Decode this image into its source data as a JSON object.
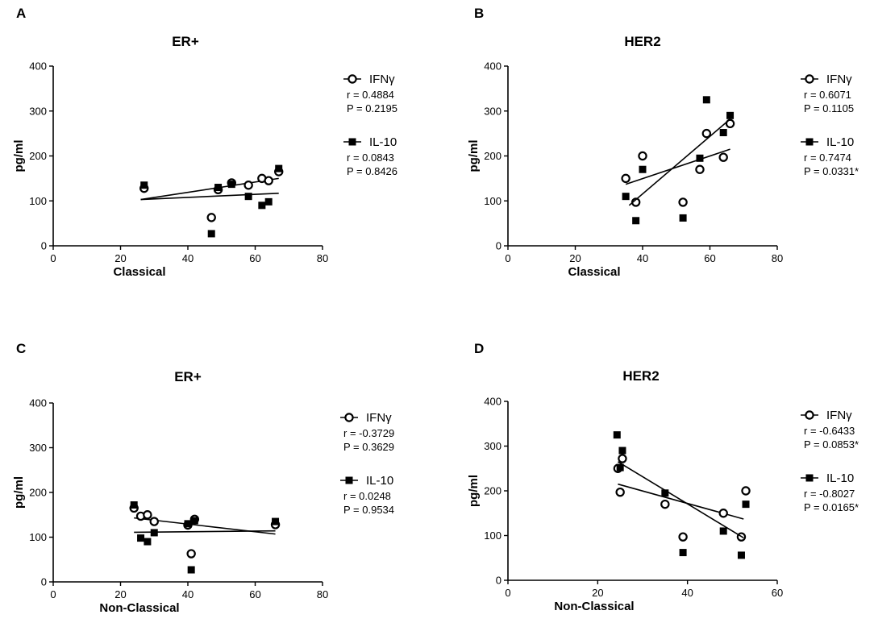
{
  "chart_data": [
    {
      "panel": "A",
      "type": "scatter",
      "title": "ER+",
      "xlabel": "Classical",
      "ylabel": "pg/ml",
      "xlim": [
        0,
        80
      ],
      "ylim": [
        0,
        400
      ],
      "xticks": [
        "0",
        "20",
        "40",
        "60",
        "80"
      ],
      "yticks": [
        "0",
        "100",
        "200",
        "300",
        "400"
      ],
      "series": [
        {
          "name": "IFNγ",
          "marker": "circle",
          "x": [
            27,
            47,
            49,
            53,
            58,
            62,
            64,
            67
          ],
          "y": [
            128,
            63,
            125,
            140,
            135,
            150,
            145,
            165
          ],
          "fit": [
            [
              26,
              103
            ],
            [
              67,
              150
            ]
          ],
          "r": "r  =  0.4884",
          "p": "P  =  0.2195"
        },
        {
          "name": "IL-10",
          "marker": "square",
          "x": [
            27,
            47,
            49,
            53,
            58,
            62,
            64,
            67
          ],
          "y": [
            135,
            27,
            130,
            137,
            110,
            90,
            98,
            172
          ],
          "fit": [
            [
              26,
              103
            ],
            [
              67,
              117
            ]
          ],
          "r": "r  =  0.0843",
          "p": "P  =  0.8426"
        }
      ]
    },
    {
      "panel": "B",
      "type": "scatter",
      "title": "HER2",
      "xlabel": "Classical",
      "ylabel": "pg/ml",
      "xlim": [
        0,
        80
      ],
      "ylim": [
        0,
        400
      ],
      "xticks": [
        "0",
        "20",
        "40",
        "60",
        "80"
      ],
      "yticks": [
        "0",
        "100",
        "200",
        "300",
        "400"
      ],
      "series": [
        {
          "name": "IFNγ",
          "marker": "circle",
          "x": [
            35,
            38,
            40,
            52,
            57,
            59,
            64,
            66
          ],
          "y": [
            150,
            97,
            200,
            97,
            170,
            250,
            197,
            272
          ],
          "fit": [
            [
              35,
              137
            ],
            [
              66,
              215
            ]
          ],
          "r": "r  =  0.6071",
          "p": "P  =  0.1105"
        },
        {
          "name": "IL-10",
          "marker": "square",
          "x": [
            35,
            38,
            40,
            52,
            57,
            59,
            64,
            66
          ],
          "y": [
            110,
            56,
            170,
            62,
            195,
            325,
            252,
            290
          ],
          "fit": [
            [
              36,
              90
            ],
            [
              66,
              282
            ]
          ],
          "r": "r  =  0.7474",
          "p": "P  =  0.0331*"
        }
      ]
    },
    {
      "panel": "C",
      "type": "scatter",
      "title": "ER+",
      "xlabel": "Non-Classical",
      "ylabel": "pg/ml",
      "xlim": [
        0,
        80
      ],
      "ylim": [
        0,
        400
      ],
      "xticks": [
        "0",
        "20",
        "40",
        "60",
        "80"
      ],
      "yticks": [
        "0",
        "100",
        "200",
        "300",
        "400"
      ],
      "series": [
        {
          "name": "IFNγ",
          "marker": "circle",
          "x": [
            24,
            26,
            28,
            30,
            40,
            41,
            42,
            66
          ],
          "y": [
            165,
            147,
            150,
            135,
            127,
            63,
            140,
            128
          ],
          "fit": [
            [
              24,
              143
            ],
            [
              66,
              107
            ]
          ],
          "r": "r  = -0.3729",
          "p": "P  =  0.3629"
        },
        {
          "name": "IL-10",
          "marker": "square",
          "x": [
            24,
            26,
            28,
            30,
            40,
            41,
            42,
            66
          ],
          "y": [
            172,
            98,
            90,
            110,
            130,
            27,
            137,
            135
          ],
          "fit": [
            [
              24,
              111
            ],
            [
              66,
              114
            ]
          ],
          "r": "r  =  0.0248",
          "p": "P  =  0.9534"
        }
      ]
    },
    {
      "panel": "D",
      "type": "scatter",
      "title": "HER2",
      "xlabel": "Non-Classical",
      "ylabel": "pg/ml",
      "xlim": [
        0,
        60
      ],
      "ylim": [
        0,
        400
      ],
      "xticks": [
        "0",
        "20",
        "40",
        "60"
      ],
      "yticks": [
        "0",
        "100",
        "200",
        "300",
        "400"
      ],
      "series": [
        {
          "name": "IFNγ",
          "marker": "circle",
          "x": [
            24.5,
            25,
            25.5,
            35,
            39,
            48,
            52,
            53
          ],
          "y": [
            250,
            197,
            272,
            170,
            97,
            150,
            97,
            200
          ],
          "fit": [
            [
              24.5,
              215
            ],
            [
              52.5,
              137
            ]
          ],
          "r": "r  = -0.6433",
          "p": "P  =  0.0853*"
        },
        {
          "name": "IL-10",
          "marker": "square",
          "x": [
            24.3,
            25,
            25.5,
            35,
            39,
            48,
            52,
            53
          ],
          "y": [
            325,
            252,
            290,
            195,
            62,
            110,
            56,
            170
          ],
          "fit": [
            [
              24.5,
              265
            ],
            [
              52.5,
              95
            ]
          ],
          "r": "r  = -0.8027",
          "p": "P  =  0.0165*"
        }
      ]
    }
  ]
}
